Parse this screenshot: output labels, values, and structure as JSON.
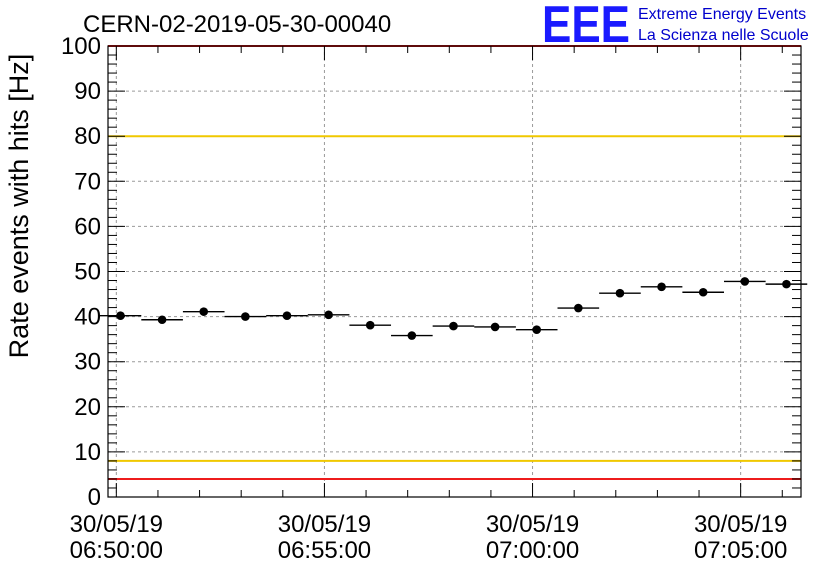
{
  "chart_data": {
    "type": "scatter",
    "title": "CERN-02-2019-05-30-00040",
    "ylabel": "Rate events with hits [Hz]",
    "xlabel": "",
    "ylim": [
      0,
      100
    ],
    "xlim_minutes": [
      -0.2,
      16.45
    ],
    "yticks": [
      0,
      10,
      20,
      30,
      40,
      50,
      60,
      70,
      80,
      90,
      100
    ],
    "xticks": [
      {
        "minute": 0,
        "date": "30/05/19",
        "time": "06:50:00"
      },
      {
        "minute": 5,
        "date": "30/05/19",
        "time": "06:55:00"
      },
      {
        "minute": 10,
        "date": "30/05/19",
        "time": "07:00:00"
      },
      {
        "minute": 15,
        "date": "30/05/19",
        "time": "07:05:00"
      }
    ],
    "grid": true,
    "bin_width_minutes": 1,
    "series": [
      {
        "x_minutes": [
          0.1,
          1.1,
          2.1,
          3.1,
          4.1,
          5.1,
          6.1,
          7.1,
          8.1,
          9.1,
          10.1,
          11.1,
          12.1,
          13.1,
          14.1,
          15.1,
          16.1
        ],
        "values": [
          40.2,
          39.3,
          41.1,
          40.0,
          40.2,
          40.4,
          38.1,
          35.8,
          37.9,
          37.7,
          37.1,
          41.9,
          45.2,
          46.6,
          45.4,
          47.8,
          47.2
        ]
      }
    ],
    "reference_lines": [
      {
        "y": 100,
        "color": "#ee1c1c"
      },
      {
        "y": 80,
        "color": "#f0c800"
      },
      {
        "y": 8,
        "color": "#f0c800"
      },
      {
        "y": 4,
        "color": "#ee1c1c"
      }
    ]
  },
  "logo": {
    "mark": "EEE",
    "line1": "Extreme Energy Events",
    "line2": "La Scienza nelle Scuole",
    "color": "#1a1aff"
  }
}
